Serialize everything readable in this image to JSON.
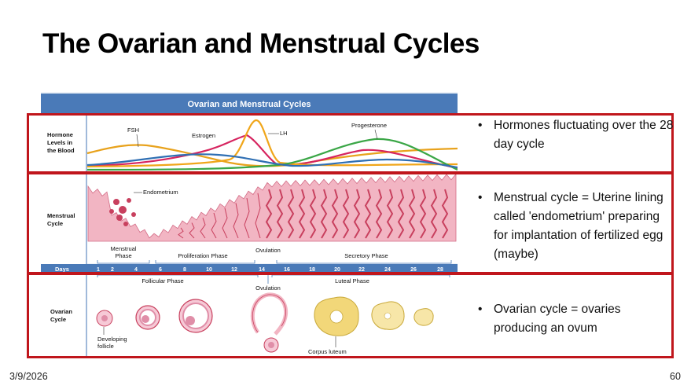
{
  "slide": {
    "title": "The Ovarian and Menstrual Cycles",
    "date": "3/9/2026",
    "page_number": "60"
  },
  "figure": {
    "header": "Ovarian and Menstrual Cycles",
    "row_labels": {
      "hormone": [
        "Hormone",
        "Levels in",
        "the Blood"
      ],
      "menstrual": [
        "Menstrual",
        "Cycle"
      ],
      "ovarian": [
        "Ovarian",
        "Cycle"
      ]
    },
    "hormones": {
      "fsh": "FSH",
      "estrogen": "Estrogen",
      "lh": "LH",
      "progesterone": "Progesterone"
    },
    "labels": {
      "endometrium": "Endometrium",
      "menstrual_phase": [
        "Menstrual",
        "Phase"
      ],
      "proliferation_phase": "Proliferation Phase",
      "ovulation_upper": "Ovulation",
      "secretory_phase": "Secretory Phase",
      "days": "Days",
      "follicular_phase": "Follicular Phase",
      "luteal_phase": "Luteal Phase",
      "ovulation_lower": "Ovulation",
      "developing_follicle": [
        "Developing",
        "follicle"
      ],
      "corpus_luteum": "Corpus luteum"
    },
    "day_ticks": [
      "1",
      "2",
      "4",
      "6",
      "8",
      "10",
      "12",
      "14",
      "16",
      "18",
      "20",
      "22",
      "24",
      "26",
      "28"
    ],
    "colors": {
      "header_bar": "#4a7ab8",
      "panel_bg": "#e8eef6",
      "fsh": "#e8a21c",
      "estrogen": "#d6245f",
      "lh": "#f0a61a",
      "progesterone": "#3aa646",
      "blue_hormone": "#2f6fb3",
      "tissue": "#f2b5c3",
      "tissue_dark": "#c8405e",
      "corpus": "#f2d779",
      "highlight_box": "#c0161c"
    }
  },
  "bullets": [
    "Hormones fluctuating over the 28 day cycle",
    "Menstrual cycle = Uterine lining called 'endometrium' preparing for implantation of fertilized egg (maybe)",
    "Ovarian cycle = ovaries producing an ovum"
  ]
}
